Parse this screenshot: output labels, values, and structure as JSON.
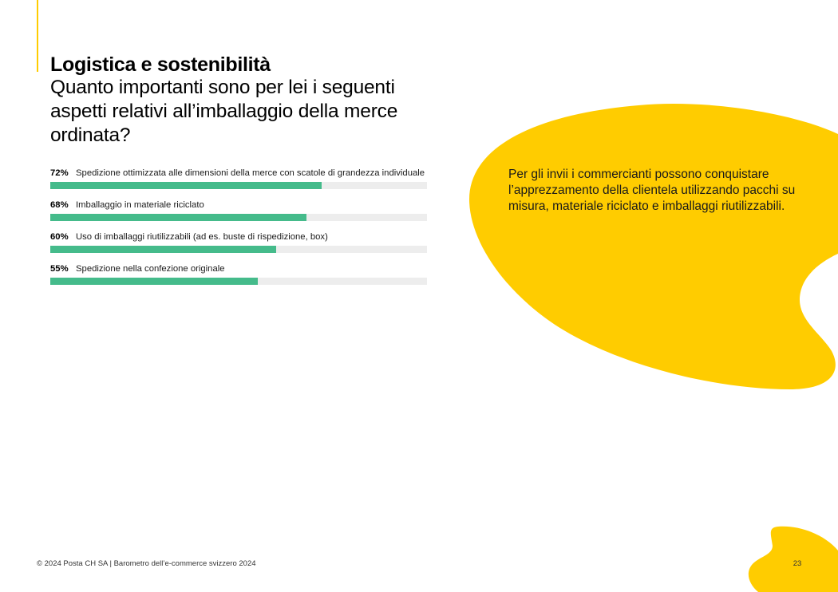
{
  "colors": {
    "accent_yellow": "#FFCC00",
    "bar_fill": "#45BB8B",
    "bar_track": "#EDEDED",
    "text": "#000000"
  },
  "header": {
    "title": "Logistica e sostenibilità",
    "subtitle": "Quanto importanti sono per lei i seguenti aspetti relativi all’imballaggio della merce ordinata?"
  },
  "bars": [
    {
      "pct": "72%",
      "value": 72,
      "label": "Spedizione ottimizzata alle dimensioni della merce con scatole di grandezza individuale"
    },
    {
      "pct": "68%",
      "value": 68,
      "label": "Imballaggio in materiale riciclato"
    },
    {
      "pct": "60%",
      "value": 60,
      "label": "Uso di imballaggi riutilizzabili (ad es. buste di rispedizione, box)"
    },
    {
      "pct": "55%",
      "value": 55,
      "label": "Spedizione nella confezione originale"
    }
  ],
  "callout": {
    "text": "Per gli invii i commercianti possono conquistare l’apprezzamento della clientela utilizzando pacchi su misura, materiale riciclato e imballaggi riutilizzabili."
  },
  "footer": {
    "copyright": "© 2024 Posta CH SA | Barometro dell’e-commerce svizzero 2024",
    "page_number": "23"
  },
  "chart_data": {
    "type": "bar",
    "orientation": "horizontal",
    "title": "Logistica e sostenibilità",
    "subtitle": "Quanto importanti sono per lei i seguenti aspetti relativi all’imballaggio della merce ordinata?",
    "categories": [
      "Spedizione ottimizzata alle dimensioni della merce con scatole di grandezza individuale",
      "Imballaggio in materiale riciclato",
      "Uso di imballaggi riutilizzabili (ad es. buste di rispedizione, box)",
      "Spedizione nella confezione originale"
    ],
    "values": [
      72,
      68,
      60,
      55
    ],
    "value_labels": [
      "72%",
      "68%",
      "60%",
      "55%"
    ],
    "xlim": [
      0,
      100
    ],
    "xlabel": "",
    "ylabel": "",
    "grid": false,
    "legend": null
  }
}
